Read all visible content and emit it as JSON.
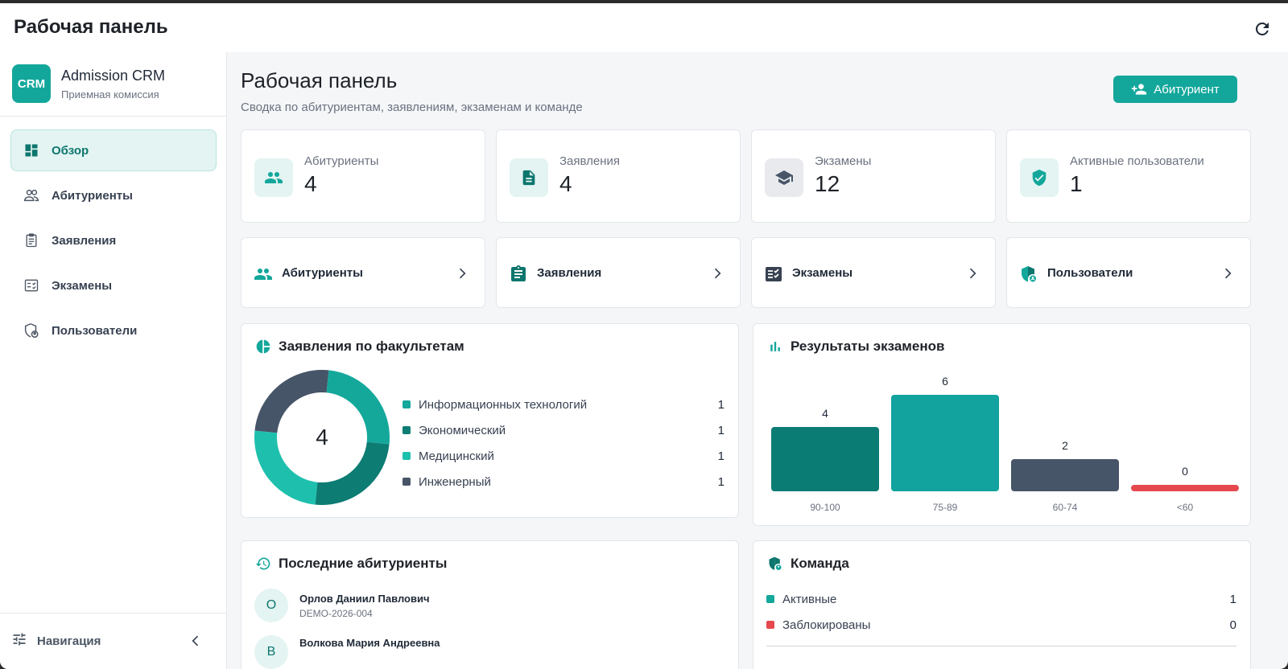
{
  "window": {
    "title": "Рабочая панель"
  },
  "sidebar": {
    "brand": {
      "logo": "CRM",
      "name": "Admission CRM",
      "subtitle": "Приемная комиссия"
    },
    "items": [
      {
        "label": "Обзор",
        "icon": "dashboard-icon",
        "active": true
      },
      {
        "label": "Абитуриенты",
        "icon": "people-icon"
      },
      {
        "label": "Заявления",
        "icon": "clipboard-icon"
      },
      {
        "label": "Экзамены",
        "icon": "checklist-icon"
      },
      {
        "label": "Пользователи",
        "icon": "user-shield-icon"
      }
    ],
    "bottom": {
      "label": "Навигация",
      "icon": "tune-icon"
    }
  },
  "page": {
    "title": "Рабочая панель",
    "subtitle": "Сводка по абитуриентам, заявлениям, экзаменам и команде",
    "add_button": "Абитуриент"
  },
  "stats": [
    {
      "label": "Абитуриенты",
      "value": "4",
      "icon": "people-icon"
    },
    {
      "label": "Заявления",
      "value": "4",
      "icon": "document-icon"
    },
    {
      "label": "Экзамены",
      "value": "12",
      "icon": "graduation-cap-icon"
    },
    {
      "label": "Активные пользователи",
      "value": "1",
      "icon": "shield-check-icon"
    }
  ],
  "links": [
    {
      "label": "Абитуриенты",
      "icon": "people-icon"
    },
    {
      "label": "Заявления",
      "icon": "clipboard-icon"
    },
    {
      "label": "Экзамены",
      "icon": "checklist-icon"
    },
    {
      "label": "Пользователи",
      "icon": "user-shield-icon"
    }
  ],
  "faculties": {
    "title": "Заявления по факультетам",
    "total": "4",
    "items": [
      {
        "label": "Информационных технологий",
        "value": "1",
        "color": "#14a89b"
      },
      {
        "label": "Экономический",
        "value": "1",
        "color": "#0d7c73"
      },
      {
        "label": "Медицинский",
        "value": "1",
        "color": "#1ec0ad"
      },
      {
        "label": "Инженерный",
        "value": "1",
        "color": "#475569"
      }
    ]
  },
  "exams": {
    "title": "Результаты экзаменов",
    "bars": [
      {
        "label": "90-100",
        "value": 4,
        "color": "#0a7c74"
      },
      {
        "label": "75-89",
        "value": 6,
        "color": "#12a39f"
      },
      {
        "label": "60-74",
        "value": 2,
        "color": "#475569"
      },
      {
        "label": "<60",
        "value": 0,
        "color": "#e5484d"
      }
    ]
  },
  "recent": {
    "title": "Последние абитуриенты",
    "items": [
      {
        "initial": "О",
        "name": "Орлов Даниил Павлович",
        "code": "DEMO-2026-004"
      },
      {
        "initial": "В",
        "name": "Волкова Мария Андреевна",
        "code": ""
      }
    ]
  },
  "team": {
    "title": "Команда",
    "items": [
      {
        "label": "Активные",
        "value": "1",
        "color": "#14a89b"
      },
      {
        "label": "Заблокированы",
        "value": "0",
        "color": "#e5484d"
      }
    ]
  }
}
